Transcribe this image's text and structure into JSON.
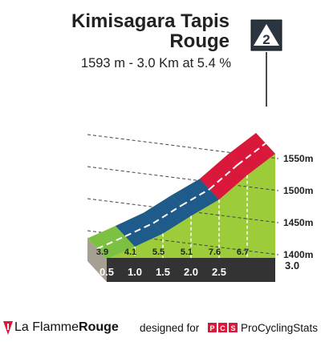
{
  "header": {
    "title_line1": "Kimisagara Tapis",
    "title_line2": "Rouge",
    "subtitle": "1593 m - 3.0 Km at 5.4 %",
    "category_badge": "2"
  },
  "chart_data": {
    "type": "area",
    "title": "Kimisagara Tapis Rouge",
    "subtitle": "1593 m - 3.0 Km at 5.4 %",
    "x_unit": "km",
    "y_unit": "m",
    "ylim": [
      1388,
      1593
    ],
    "grid": true,
    "segments": [
      {
        "start_km": 0.0,
        "end_km": 0.5,
        "gradient_pct": 3.9,
        "color": "#7dc142"
      },
      {
        "start_km": 0.5,
        "end_km": 1.0,
        "gradient_pct": 4.1,
        "color": "#1f5b8a"
      },
      {
        "start_km": 1.0,
        "end_km": 1.5,
        "gradient_pct": 5.5,
        "color": "#1f5b8a"
      },
      {
        "start_km": 1.5,
        "end_km": 2.0,
        "gradient_pct": 5.1,
        "color": "#1f5b8a"
      },
      {
        "start_km": 2.0,
        "end_km": 2.5,
        "gradient_pct": 7.6,
        "color": "#d9183b"
      },
      {
        "start_km": 2.5,
        "end_km": 3.0,
        "gradient_pct": 6.7,
        "color": "#d9183b"
      }
    ],
    "x_ticks": [
      "0.5",
      "1.0",
      "1.5",
      "2.0",
      "2.5",
      "3.0"
    ],
    "y_ticks": [
      "1400m",
      "1450m",
      "1500m",
      "1550m"
    ]
  },
  "colors": {
    "grass": "#9ccc3a",
    "base_bar": "#333333",
    "wall": "#a89f93",
    "grid": "#444444",
    "badge": "#2b3540"
  },
  "footer": {
    "brand_part1": "La Flamme",
    "brand_part2": "Rouge",
    "designed_for": "designed for",
    "pcs_logo_text": "PCS",
    "pcs_name": "ProCyclingStats"
  }
}
